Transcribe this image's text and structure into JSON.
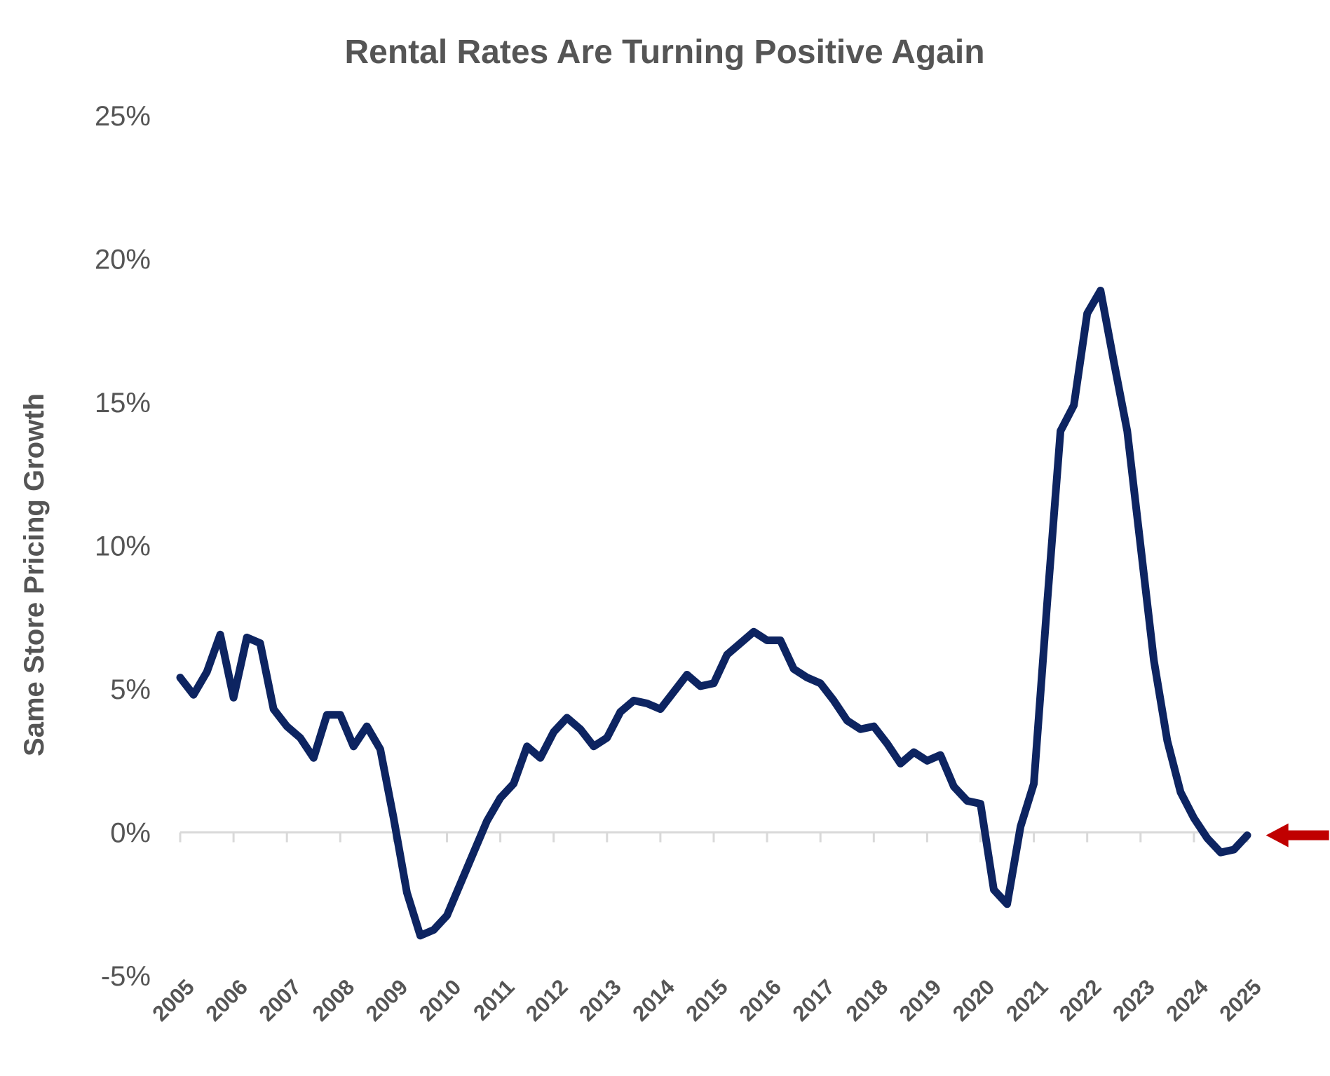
{
  "chart_data": {
    "type": "line",
    "title": "Rental Rates Are Turning Positive Again",
    "ylabel": "Same Store Pricing Growth",
    "xlabel": "",
    "x_start": 2005.0,
    "x_step": 0.25,
    "xlim": [
      2005,
      2025
    ],
    "ylim": [
      -5,
      25
    ],
    "y_ticks": [
      {
        "value": 25,
        "label": "25%"
      },
      {
        "value": 20,
        "label": "20%"
      },
      {
        "value": 15,
        "label": "15%"
      },
      {
        "value": 10,
        "label": "10%"
      },
      {
        "value": 5,
        "label": "5%"
      },
      {
        "value": 0,
        "label": "0%"
      },
      {
        "value": -5,
        "label": "-5%"
      }
    ],
    "x_ticks": [
      {
        "value": 2005,
        "label": "2005"
      },
      {
        "value": 2006,
        "label": "2006"
      },
      {
        "value": 2007,
        "label": "2007"
      },
      {
        "value": 2008,
        "label": "2008"
      },
      {
        "value": 2009,
        "label": "2009"
      },
      {
        "value": 2010,
        "label": "2010"
      },
      {
        "value": 2011,
        "label": "2011"
      },
      {
        "value": 2012,
        "label": "2012"
      },
      {
        "value": 2013,
        "label": "2013"
      },
      {
        "value": 2014,
        "label": "2014"
      },
      {
        "value": 2015,
        "label": "2015"
      },
      {
        "value": 2016,
        "label": "2016"
      },
      {
        "value": 2017,
        "label": "2017"
      },
      {
        "value": 2018,
        "label": "2018"
      },
      {
        "value": 2019,
        "label": "2019"
      },
      {
        "value": 2020,
        "label": "2020"
      },
      {
        "value": 2021,
        "label": "2021"
      },
      {
        "value": 2022,
        "label": "2022"
      },
      {
        "value": 2023,
        "label": "2023"
      },
      {
        "value": 2024,
        "label": "2024"
      },
      {
        "value": 2025,
        "label": "2025"
      }
    ],
    "series": [
      {
        "color": "#0d2461",
        "values": [
          5.4,
          4.8,
          5.6,
          6.9,
          4.7,
          6.8,
          6.6,
          4.3,
          3.7,
          3.3,
          2.6,
          4.1,
          4.1,
          3.0,
          3.7,
          2.9,
          0.5,
          -2.1,
          -3.6,
          -3.4,
          -2.9,
          -1.8,
          -0.7,
          0.4,
          1.2,
          1.7,
          3.0,
          2.6,
          3.5,
          4.0,
          3.6,
          3.0,
          3.3,
          4.2,
          4.6,
          4.5,
          4.3,
          4.9,
          5.5,
          5.1,
          5.2,
          6.2,
          6.6,
          7.0,
          6.7,
          6.7,
          5.7,
          5.4,
          5.2,
          4.6,
          3.9,
          3.6,
          3.7,
          3.1,
          2.4,
          2.8,
          2.5,
          2.7,
          1.6,
          1.1,
          1.0,
          -2.0,
          -2.5,
          0.2,
          1.7,
          8.0,
          14.0,
          14.9,
          18.1,
          18.9,
          16.4,
          14.0,
          10.0,
          6.0,
          3.2,
          1.4,
          0.5,
          -0.2,
          -0.7,
          -0.6,
          -0.1
        ]
      }
    ],
    "annotation": {
      "type": "arrow",
      "x": 2025.35,
      "y": -0.1,
      "color": "#c00000"
    },
    "zero_line": {
      "value": 0,
      "color": "#d9d9d9"
    },
    "grid": false,
    "legend": "none"
  }
}
